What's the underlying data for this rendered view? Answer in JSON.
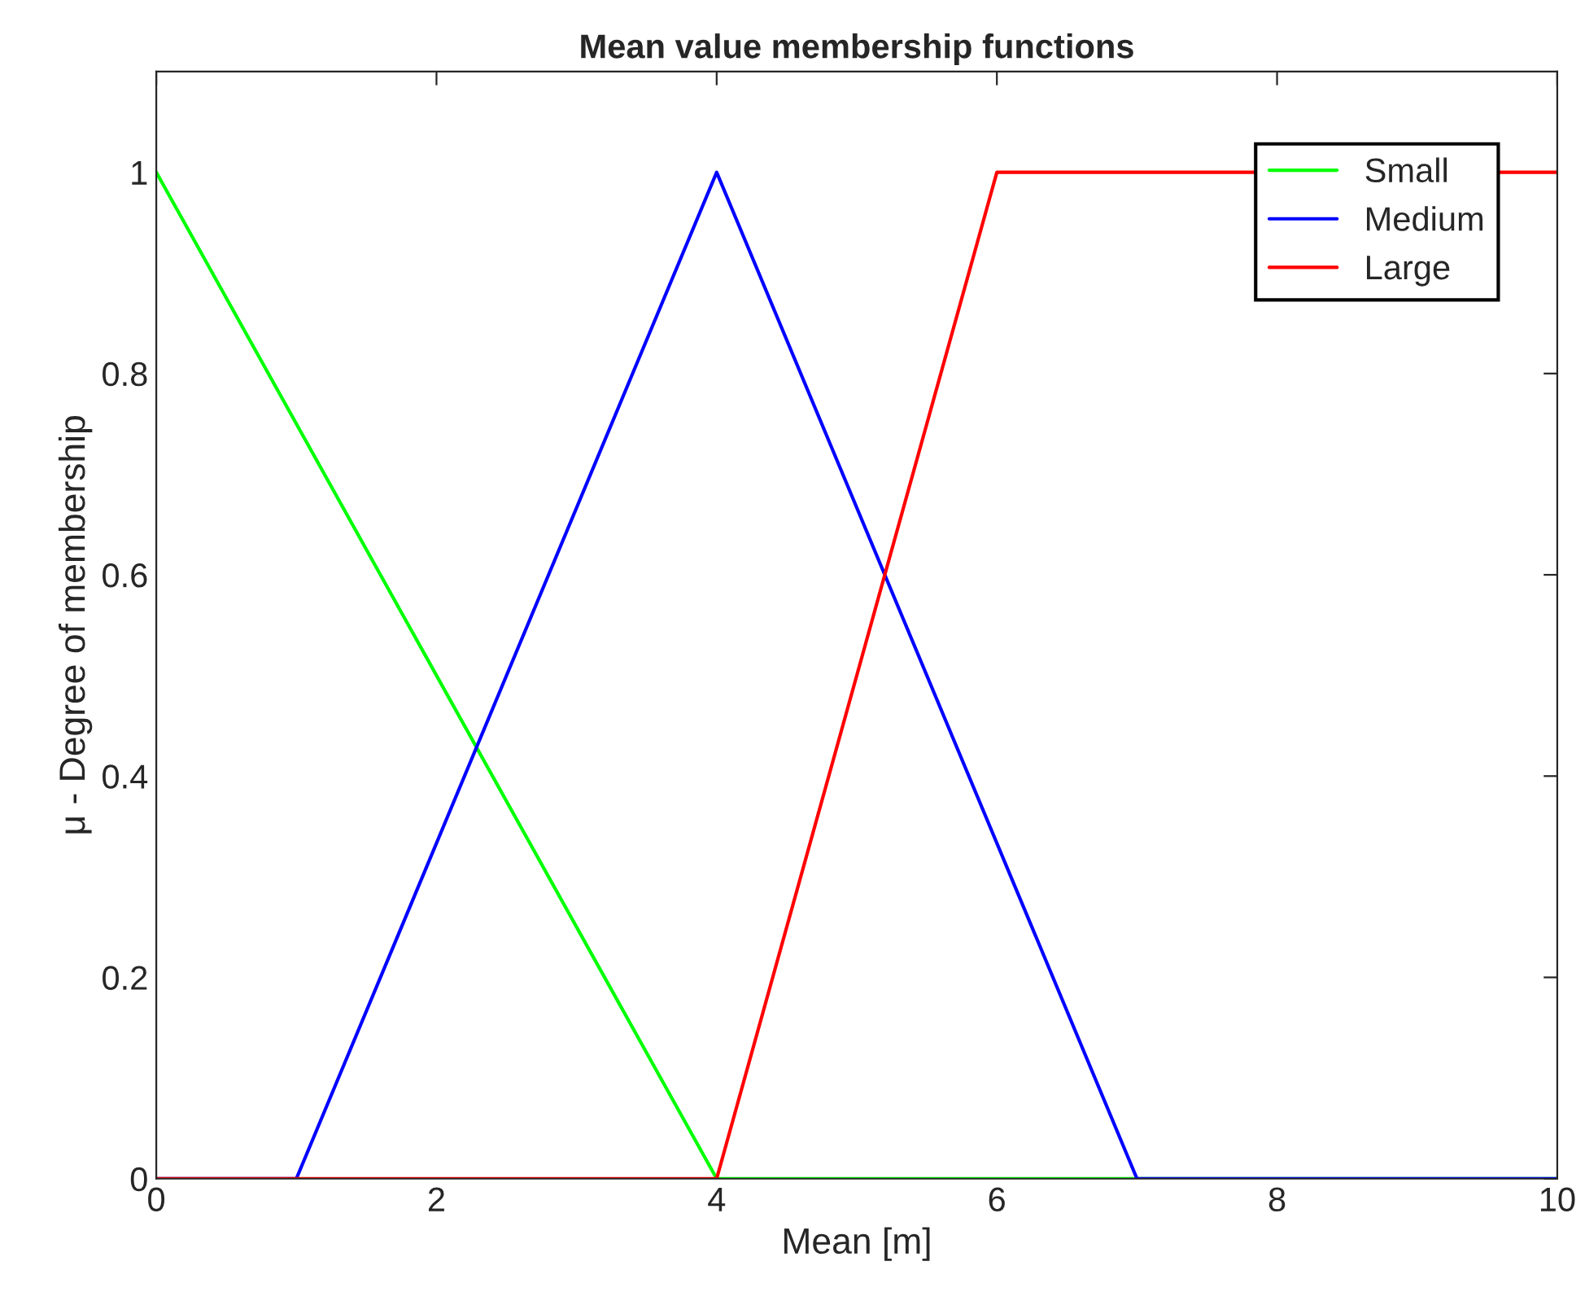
{
  "chart_data": {
    "type": "line",
    "title": "Mean value membership functions",
    "xlabel": "Mean [m]",
    "ylabel": "μ - Degree of membership",
    "series": [
      {
        "name": "Small",
        "color": "#00ff00",
        "x": [
          0,
          4,
          10
        ],
        "values": [
          1,
          0,
          0
        ]
      },
      {
        "name": "Medium",
        "color": "#0000ff",
        "x": [
          0,
          1,
          4,
          7,
          10
        ],
        "values": [
          0,
          0,
          1,
          0,
          0
        ]
      },
      {
        "name": "Large",
        "color": "#ff0000",
        "x": [
          0,
          4,
          6,
          10
        ],
        "values": [
          0,
          0,
          1,
          1
        ]
      }
    ],
    "xlim": [
      0,
      10
    ],
    "xticks": [
      0,
      2,
      4,
      6,
      8,
      10
    ],
    "ylim": [
      0,
      1.1
    ],
    "yticks": [
      0,
      0.2,
      0.4,
      0.6,
      0.8,
      1
    ],
    "grid": false,
    "legend": "top right",
    "marker": "none",
    "line_style": "solid"
  }
}
